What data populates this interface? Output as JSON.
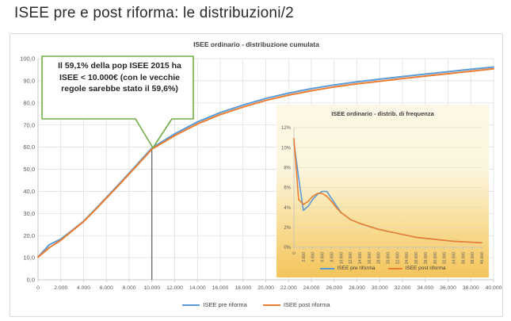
{
  "slide": {
    "title": "ISEE pre e post riforma: le distribuzioni/2"
  },
  "annotation": {
    "text": "Il 59,1% della pop ISEE 2015 ha ISEE < 10.000€ (con le vecchie regole sarebbe stato il 59,6%)",
    "border_color": "#70AD47",
    "fill_color": "#FFFFFF",
    "points_to_x": 10000
  },
  "colors": {
    "pre_riforma": "#5B9BD5",
    "post_riforma": "#ED7D31",
    "gridline": "#DBDBDB",
    "axis": "#BFBFBF",
    "axis_text": "#595959",
    "marker_line": "#404040",
    "inset_bg_top": "#FDF8E6",
    "inset_bg_bottom": "#F4C45A",
    "panel_border": "#D9D9D9"
  },
  "chart_data": [
    {
      "type": "line",
      "title": "ISEE ordinario - distribuzione cumulata",
      "xlabel": "",
      "ylabel": "",
      "xlim": [
        0,
        40000
      ],
      "ylim": [
        0,
        100
      ],
      "grid": "both",
      "legend_position": "bottom",
      "marker_x": 10000,
      "x": [
        0,
        1000,
        2000,
        3000,
        4000,
        5000,
        6000,
        7000,
        8000,
        9000,
        10000,
        12000,
        14000,
        16000,
        18000,
        20000,
        22000,
        24000,
        26000,
        28000,
        30000,
        32000,
        34000,
        36000,
        38000,
        40000
      ],
      "x_tick_labels": [
        "0",
        "2.000",
        "4.000",
        "6.000",
        "8.000",
        "10.000",
        "12.000",
        "14.000",
        "16.000",
        "18.000",
        "20.000",
        "22.000",
        "24.000",
        "26.000",
        "28.000",
        "30.000",
        "32.000",
        "34.000",
        "36.000",
        "38.000",
        "40.000"
      ],
      "y_ticks": [
        0,
        10,
        20,
        30,
        40,
        50,
        60,
        70,
        80,
        90,
        100
      ],
      "y_tick_labels": [
        "0,0",
        "10,0",
        "20,0",
        "30,0",
        "40,0",
        "50,0",
        "60,0",
        "70,0",
        "80,0",
        "90,0",
        "100,0"
      ],
      "series": [
        {
          "name": "ISEE pre riforma",
          "color": "#5B9BD5",
          "values": [
            10.3,
            15.9,
            18.4,
            22.4,
            26.5,
            31.8,
            37.2,
            42.7,
            48.2,
            53.9,
            59.6,
            66.0,
            71.4,
            75.6,
            79.0,
            82.0,
            84.4,
            86.4,
            88.1,
            89.5,
            90.7,
            91.9,
            93.0,
            94.1,
            95.2,
            96.2
          ]
        },
        {
          "name": "ISEE post riforma",
          "color": "#ED7D31",
          "values": [
            10.2,
            14.6,
            17.9,
            22.1,
            26.3,
            31.5,
            36.9,
            42.3,
            47.8,
            53.4,
            59.1,
            65.2,
            70.5,
            74.7,
            78.1,
            81.1,
            83.5,
            85.5,
            87.2,
            88.6,
            89.8,
            91.0,
            92.1,
            93.2,
            94.3,
            95.4
          ]
        }
      ]
    },
    {
      "type": "line",
      "title": "ISEE ordinario - distrib. di frequenza",
      "xlabel": "",
      "ylabel": "",
      "xlim": [
        0,
        40000
      ],
      "ylim": [
        0,
        12
      ],
      "grid": "horizontal",
      "legend_position": "bottom",
      "x": [
        0,
        1000,
        2000,
        3000,
        4000,
        5000,
        6000,
        7000,
        8000,
        9000,
        10000,
        12000,
        14000,
        16000,
        18000,
        20000,
        22000,
        24000,
        26000,
        28000,
        30000,
        32000,
        34000,
        36000,
        38000,
        40000
      ],
      "x_tick_labels": [
        "0",
        "2.000",
        "4.000",
        "6.000",
        "8.000",
        "10.000",
        "12.000",
        "14.000",
        "16.000",
        "18.000",
        "20.000",
        "22.000",
        "24.000",
        "26.000",
        "28.000",
        "30.000",
        "32.000",
        "34.000",
        "36.000",
        "38.000",
        "40.000"
      ],
      "y_ticks": [
        0,
        2,
        4,
        6,
        8,
        10,
        12
      ],
      "y_tick_labels": [
        "0%",
        "2%",
        "4%",
        "6%",
        "8%",
        "10%",
        "12%"
      ],
      "series": [
        {
          "name": "ISEE pre riforma",
          "color": "#5B9BD5",
          "values": [
            10.5,
            7.0,
            3.7,
            4.1,
            4.8,
            5.3,
            5.6,
            5.6,
            4.9,
            4.2,
            3.5,
            2.8,
            2.4,
            2.1,
            1.8,
            1.6,
            1.4,
            1.2,
            1.0,
            0.9,
            0.8,
            0.7,
            0.6,
            0.55,
            0.5,
            0.45
          ]
        },
        {
          "name": "ISEE post riforma",
          "color": "#ED7D31",
          "values": [
            10.9,
            4.8,
            4.3,
            4.6,
            5.1,
            5.4,
            5.4,
            5.1,
            4.6,
            4.0,
            3.5,
            2.8,
            2.4,
            2.1,
            1.8,
            1.6,
            1.4,
            1.2,
            1.0,
            0.9,
            0.8,
            0.7,
            0.6,
            0.55,
            0.5,
            0.45
          ]
        }
      ]
    }
  ]
}
